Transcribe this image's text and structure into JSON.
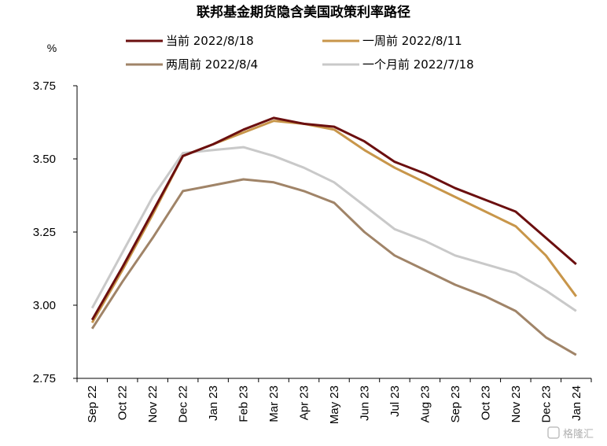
{
  "chart_data": {
    "type": "line",
    "title": "联邦基金期货隐含美国政策利率路径",
    "ylabel": "%",
    "xlabel": "",
    "ylim": [
      2.75,
      3.75
    ],
    "yticks": [
      "3.75",
      "3.50",
      "3.25",
      "3.00",
      "2.75"
    ],
    "categories": [
      "Sep 22",
      "Oct 22",
      "Nov 22",
      "Dec 22",
      "Jan 23",
      "Feb 23",
      "Mar 23",
      "Apr 23",
      "May 23",
      "Jun 23",
      "Jul 23",
      "Aug 23",
      "Sep 23",
      "Oct 23",
      "Nov 23",
      "Dec 23",
      "Jan 24"
    ],
    "grid": false,
    "legend_position": "top",
    "series": [
      {
        "name": "当前 2022/8/18",
        "color": "#6b0f0f",
        "values": [
          2.95,
          3.13,
          3.32,
          3.51,
          3.55,
          3.6,
          3.64,
          3.62,
          3.61,
          3.56,
          3.49,
          3.45,
          3.4,
          3.36,
          3.32,
          3.23,
          3.14
        ]
      },
      {
        "name": "一周前 2022/8/11",
        "color": "#c8964a",
        "values": [
          2.94,
          3.12,
          3.31,
          3.51,
          3.55,
          3.59,
          3.63,
          3.62,
          3.6,
          3.53,
          3.47,
          3.42,
          3.37,
          3.32,
          3.27,
          3.17,
          3.03
        ]
      },
      {
        "name": "两周前 2022/8/4",
        "color": "#a08468",
        "values": [
          2.92,
          3.08,
          3.23,
          3.39,
          3.41,
          3.43,
          3.42,
          3.39,
          3.35,
          3.25,
          3.17,
          3.12,
          3.07,
          3.03,
          2.98,
          2.89,
          2.83
        ]
      },
      {
        "name": "一个月前 2022/7/18",
        "color": "#c9c9c9",
        "values": [
          2.99,
          3.18,
          3.37,
          3.52,
          3.53,
          3.54,
          3.51,
          3.47,
          3.42,
          3.34,
          3.26,
          3.22,
          3.17,
          3.14,
          3.11,
          3.05,
          2.98
        ]
      }
    ]
  },
  "watermark": "格隆汇"
}
